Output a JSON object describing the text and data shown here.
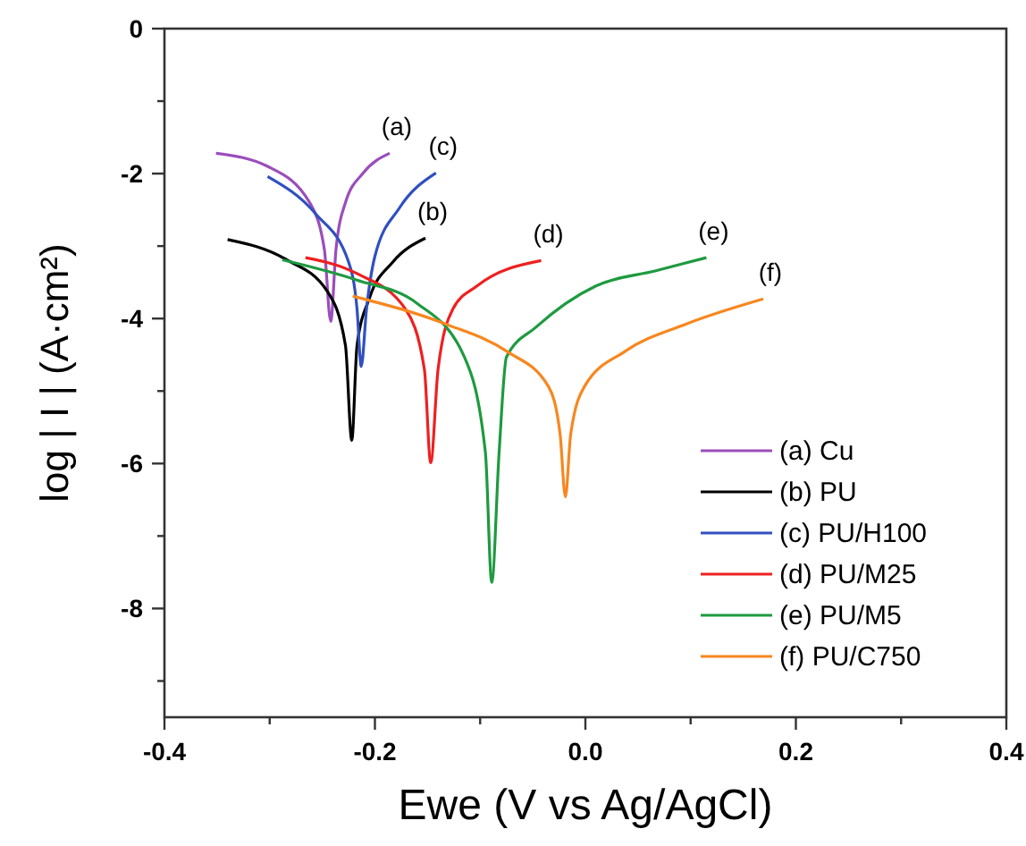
{
  "chart_data": {
    "type": "line",
    "xlabel": "Ewe (V vs Ag/AgCl)",
    "ylabel": "log | I | (A·cm²)",
    "xlim": [
      -0.4,
      0.4
    ],
    "ylim": [
      -9.5,
      0
    ],
    "xticks": [
      -0.4,
      {
        "value": -0.3,
        "label": null
      },
      -0.2,
      {
        "value": -0.1,
        "label": null
      },
      "0.0",
      {
        "value": 0.1,
        "label": null
      },
      0.2,
      {
        "value": 0.3,
        "label": null
      },
      0.4
    ],
    "yticks": [
      0,
      {
        "value": -1,
        "label": null
      },
      -2,
      {
        "value": -3,
        "label": null
      },
      -4,
      {
        "value": -5,
        "label": null
      },
      -6,
      {
        "value": -7,
        "label": null
      },
      -8,
      {
        "value": -9,
        "label": null
      }
    ],
    "grid": false,
    "legend": "bottom right",
    "line_style": "solid",
    "series": [
      {
        "name": "(a) Cu",
        "color": "#9b4dbb",
        "x": [
          -0.351,
          -0.302,
          -0.262,
          -0.248,
          -0.242,
          -0.237,
          -0.228,
          -0.211,
          -0.186
        ],
        "values": [
          -1.72,
          -1.9,
          -2.4,
          -3.05,
          -4.04,
          -3.05,
          -2.4,
          -1.99,
          -1.72
        ]
      },
      {
        "name": "(b) PU",
        "color": "#000000",
        "x": [
          -0.34,
          -0.285,
          -0.245,
          -0.228,
          -0.222,
          -0.217,
          -0.205,
          -0.183,
          -0.152
        ],
        "values": [
          -2.91,
          -3.18,
          -3.63,
          -4.37,
          -5.68,
          -4.37,
          -3.71,
          -3.22,
          -2.89
        ]
      },
      {
        "name": "(c) PU/H100",
        "color": "#3050c0",
        "x": [
          -0.302,
          -0.256,
          -0.225,
          -0.217,
          -0.213,
          -0.208,
          -0.2,
          -0.177,
          -0.142
        ],
        "values": [
          -2.04,
          -2.56,
          -3.22,
          -3.87,
          -4.66,
          -3.87,
          -3.14,
          -2.48,
          -1.99
        ]
      },
      {
        "name": "(d) PU/M25",
        "color": "#ee2020",
        "x": [
          -0.266,
          -0.217,
          -0.171,
          -0.153,
          -0.147,
          -0.14,
          -0.126,
          -0.103,
          -0.042
        ],
        "values": [
          -3.16,
          -3.38,
          -3.87,
          -4.7,
          -5.99,
          -4.7,
          -3.87,
          -3.55,
          -3.2
        ]
      },
      {
        "name": "(e) PU/M5",
        "color": "#1e9a40",
        "x": [
          -0.288,
          -0.217,
          -0.16,
          -0.115,
          -0.095,
          -0.089,
          -0.082,
          -0.075,
          -0.047,
          0.01,
          0.067,
          0.115
        ],
        "values": [
          -3.19,
          -3.47,
          -3.79,
          -4.53,
          -5.85,
          -7.64,
          -5.85,
          -4.53,
          -4.12,
          -3.55,
          -3.34,
          -3.16
        ]
      },
      {
        "name": "(f) PU/C750",
        "color": "#f7871f",
        "x": [
          -0.221,
          -0.132,
          -0.075,
          -0.035,
          -0.024,
          -0.019,
          -0.014,
          -0.001,
          0.038,
          0.095,
          0.169
        ],
        "values": [
          -3.69,
          -4.08,
          -4.45,
          -4.94,
          -5.6,
          -6.46,
          -5.6,
          -4.94,
          -4.45,
          -4.08,
          -3.73
        ]
      }
    ],
    "annotations": [
      "(a)",
      "(b)",
      "(c)",
      "(d)",
      "(e)",
      "(f)"
    ]
  }
}
